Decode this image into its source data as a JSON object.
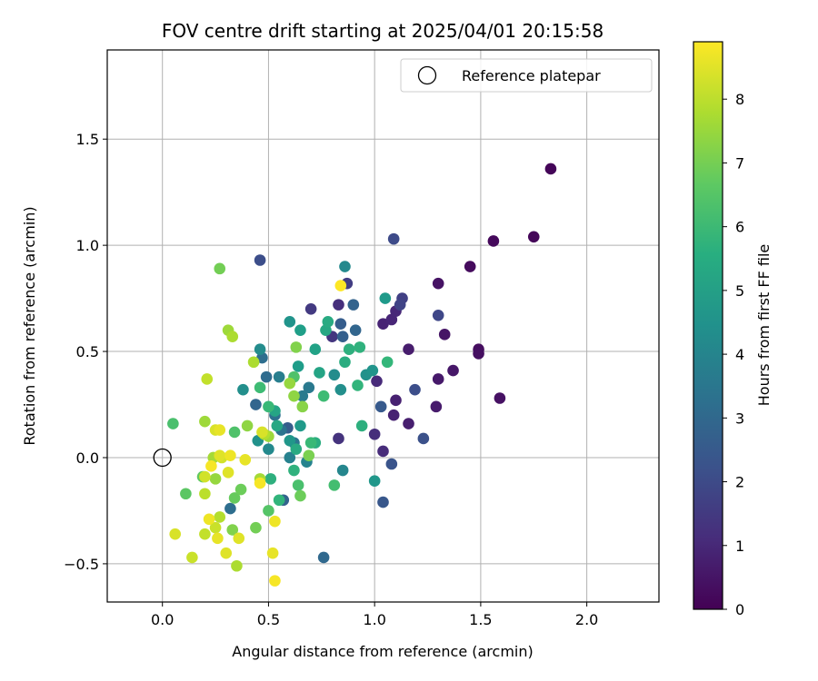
{
  "chart_data": {
    "type": "scatter",
    "title": "FOV centre drift starting at 2025/04/01 20:15:58",
    "xlabel": "Angular distance from reference (arcmin)",
    "ylabel": "Rotation from reference (arcmin)",
    "xlim": [
      -0.26,
      2.34
    ],
    "ylim": [
      -0.68,
      1.92
    ],
    "xticks": [
      0.0,
      0.5,
      1.0,
      1.5,
      2.0
    ],
    "xtick_labels": [
      "0.0",
      "0.5",
      "1.0",
      "1.5",
      "2.0"
    ],
    "yticks": [
      -0.5,
      0.0,
      0.5,
      1.0,
      1.5
    ],
    "ytick_labels": [
      "−0.5",
      "0.0",
      "0.5",
      "1.0",
      "1.5"
    ],
    "grid": true,
    "legend": {
      "position": "top-right",
      "entries": [
        "Reference platepar"
      ]
    },
    "reference_point": {
      "x": 0.0,
      "y": 0.0
    },
    "colorbar": {
      "label": "Hours from first FF file",
      "range": [
        0,
        8.9
      ],
      "ticks": [
        0,
        1,
        2,
        3,
        4,
        5,
        6,
        7,
        8
      ],
      "tick_labels": [
        "0",
        "1",
        "2",
        "3",
        "4",
        "5",
        "6",
        "7",
        "8"
      ],
      "colormap": "viridis"
    },
    "points": [
      [
        1.83,
        1.36,
        0.1
      ],
      [
        1.75,
        1.04,
        0.15
      ],
      [
        1.56,
        1.02,
        0.2
      ],
      [
        1.45,
        0.9,
        0.25
      ],
      [
        1.49,
        0.51,
        0.3
      ],
      [
        1.49,
        0.49,
        0.35
      ],
      [
        1.59,
        0.28,
        0.4
      ],
      [
        1.3,
        0.82,
        0.45
      ],
      [
        1.33,
        0.58,
        0.5
      ],
      [
        1.37,
        0.41,
        0.55
      ],
      [
        1.3,
        0.37,
        0.6
      ],
      [
        1.29,
        0.24,
        0.65
      ],
      [
        1.16,
        0.51,
        0.7
      ],
      [
        1.16,
        0.16,
        0.75
      ],
      [
        1.1,
        0.27,
        0.8
      ],
      [
        1.09,
        0.2,
        0.85
      ],
      [
        1.04,
        0.63,
        0.9
      ],
      [
        1.08,
        0.65,
        0.95
      ],
      [
        1.1,
        0.69,
        1.0
      ],
      [
        1.01,
        0.36,
        1.05
      ],
      [
        1.04,
        0.03,
        1.1
      ],
      [
        1.0,
        0.11,
        1.15
      ],
      [
        0.83,
        0.72,
        1.2
      ],
      [
        0.83,
        0.09,
        1.3
      ],
      [
        0.8,
        0.57,
        1.4
      ],
      [
        0.7,
        0.7,
        1.5
      ],
      [
        0.87,
        0.82,
        1.6
      ],
      [
        1.13,
        0.75,
        1.7
      ],
      [
        1.12,
        0.72,
        1.8
      ],
      [
        1.3,
        0.67,
        1.9
      ],
      [
        1.09,
        1.03,
        2.0
      ],
      [
        1.19,
        0.32,
        2.1
      ],
      [
        1.23,
        0.09,
        2.2
      ],
      [
        1.08,
        -0.03,
        2.3
      ],
      [
        1.04,
        -0.21,
        2.4
      ],
      [
        1.03,
        0.24,
        2.5
      ],
      [
        0.84,
        0.63,
        2.6
      ],
      [
        0.85,
        0.57,
        2.7
      ],
      [
        0.9,
        0.72,
        2.8
      ],
      [
        0.91,
        0.6,
        2.9
      ],
      [
        0.46,
        0.93,
        2.1
      ],
      [
        0.59,
        0.14,
        2.6
      ],
      [
        0.57,
        -0.2,
        2.8
      ],
      [
        0.76,
        -0.47,
        3.0
      ],
      [
        0.32,
        -0.24,
        3.2
      ],
      [
        0.44,
        0.25,
        2.9
      ],
      [
        0.49,
        0.38,
        3.1
      ],
      [
        0.47,
        0.47,
        3.2
      ],
      [
        0.53,
        0.2,
        3.3
      ],
      [
        0.56,
        0.13,
        3.4
      ],
      [
        0.62,
        0.07,
        3.5
      ],
      [
        0.69,
        0.33,
        3.6
      ],
      [
        0.66,
        0.29,
        3.7
      ],
      [
        0.55,
        0.38,
        3.8
      ],
      [
        0.6,
        0.0,
        3.9
      ],
      [
        0.68,
        -0.02,
        4.0
      ],
      [
        0.85,
        -0.06,
        4.1
      ],
      [
        0.86,
        0.9,
        4.2
      ],
      [
        0.81,
        0.39,
        4.3
      ],
      [
        0.84,
        0.32,
        4.4
      ],
      [
        0.96,
        0.39,
        4.5
      ],
      [
        0.99,
        0.41,
        4.6
      ],
      [
        1.0,
        -0.11,
        4.7
      ],
      [
        1.05,
        0.75,
        4.8
      ],
      [
        0.5,
        0.04,
        4.2
      ],
      [
        0.46,
        0.51,
        4.3
      ],
      [
        0.38,
        0.32,
        4.4
      ],
      [
        0.45,
        0.08,
        4.5
      ],
      [
        0.6,
        0.64,
        4.6
      ],
      [
        0.6,
        0.08,
        4.7
      ],
      [
        0.65,
        0.15,
        4.8
      ],
      [
        0.64,
        0.43,
        4.9
      ],
      [
        0.65,
        0.6,
        5.0
      ],
      [
        0.72,
        0.51,
        5.1
      ],
      [
        0.74,
        0.4,
        5.2
      ],
      [
        0.77,
        0.6,
        5.3
      ],
      [
        0.78,
        0.64,
        5.4
      ],
      [
        0.86,
        0.45,
        5.5
      ],
      [
        0.88,
        0.51,
        5.6
      ],
      [
        0.93,
        0.52,
        5.7
      ],
      [
        0.92,
        0.34,
        5.8
      ],
      [
        1.06,
        0.45,
        5.9
      ],
      [
        0.94,
        0.15,
        5.6
      ],
      [
        0.72,
        0.07,
        5.5
      ],
      [
        0.63,
        0.04,
        5.4
      ],
      [
        0.54,
        0.15,
        5.3
      ],
      [
        0.53,
        0.22,
        5.2
      ],
      [
        0.51,
        -0.1,
        5.6
      ],
      [
        0.55,
        -0.2,
        5.8
      ],
      [
        0.62,
        -0.06,
        5.7
      ],
      [
        0.7,
        0.07,
        6.0
      ],
      [
        0.76,
        0.29,
        6.1
      ],
      [
        0.81,
        -0.13,
        6.2
      ],
      [
        0.64,
        -0.13,
        6.3
      ],
      [
        0.62,
        0.38,
        6.4
      ],
      [
        0.5,
        0.24,
        6.0
      ],
      [
        0.46,
        0.33,
        6.1
      ],
      [
        0.5,
        -0.25,
        6.5
      ],
      [
        0.34,
        0.12,
        6.4
      ],
      [
        0.05,
        0.16,
        6.3
      ],
      [
        0.11,
        -0.17,
        6.6
      ],
      [
        0.19,
        -0.09,
        6.7
      ],
      [
        0.34,
        -0.19,
        6.8
      ],
      [
        0.37,
        -0.15,
        6.9
      ],
      [
        0.44,
        -0.33,
        7.0
      ],
      [
        0.27,
        0.89,
        7.0
      ],
      [
        0.65,
        -0.18,
        6.9
      ],
      [
        0.69,
        0.01,
        7.1
      ],
      [
        0.63,
        0.52,
        7.2
      ],
      [
        0.66,
        0.24,
        7.3
      ],
      [
        0.62,
        0.29,
        7.4
      ],
      [
        0.6,
        0.35,
        7.5
      ],
      [
        0.5,
        0.1,
        7.6
      ],
      [
        0.4,
        0.15,
        7.4
      ],
      [
        0.31,
        0.6,
        7.6
      ],
      [
        0.33,
        0.57,
        7.8
      ],
      [
        0.43,
        0.45,
        7.8
      ],
      [
        0.46,
        -0.1,
        7.7
      ],
      [
        0.48,
        0.11,
        7.9
      ],
      [
        0.25,
        -0.1,
        7.5
      ],
      [
        0.2,
        0.17,
        7.6
      ],
      [
        0.24,
        0.0,
        7.7
      ],
      [
        0.33,
        -0.34,
        7.2
      ],
      [
        0.35,
        -0.51,
        7.8
      ],
      [
        0.27,
        -0.28,
        7.9
      ],
      [
        0.2,
        -0.17,
        8.0
      ],
      [
        0.2,
        -0.36,
        8.1
      ],
      [
        0.25,
        -0.33,
        8.2
      ],
      [
        0.28,
        0.0,
        8.3
      ],
      [
        0.25,
        0.13,
        8.4
      ],
      [
        0.21,
        0.37,
        8.1
      ],
      [
        0.14,
        -0.47,
        8.2
      ],
      [
        0.06,
        -0.36,
        8.4
      ],
      [
        0.2,
        -0.09,
        8.3
      ],
      [
        0.3,
        -0.45,
        8.5
      ],
      [
        0.36,
        -0.38,
        8.5
      ],
      [
        0.26,
        -0.38,
        8.6
      ],
      [
        0.22,
        -0.29,
        8.7
      ],
      [
        0.23,
        -0.04,
        8.8
      ],
      [
        0.27,
        0.01,
        8.5
      ],
      [
        0.32,
        0.01,
        8.7
      ],
      [
        0.39,
        -0.01,
        8.6
      ],
      [
        0.46,
        -0.12,
        8.8
      ],
      [
        0.47,
        0.12,
        8.4
      ],
      [
        0.53,
        -0.3,
        8.7
      ],
      [
        0.52,
        -0.45,
        8.6
      ],
      [
        0.53,
        -0.58,
        8.8
      ],
      [
        0.84,
        0.81,
        8.9
      ],
      [
        0.27,
        0.13,
        8.6
      ],
      [
        0.31,
        -0.07,
        8.5
      ]
    ]
  }
}
